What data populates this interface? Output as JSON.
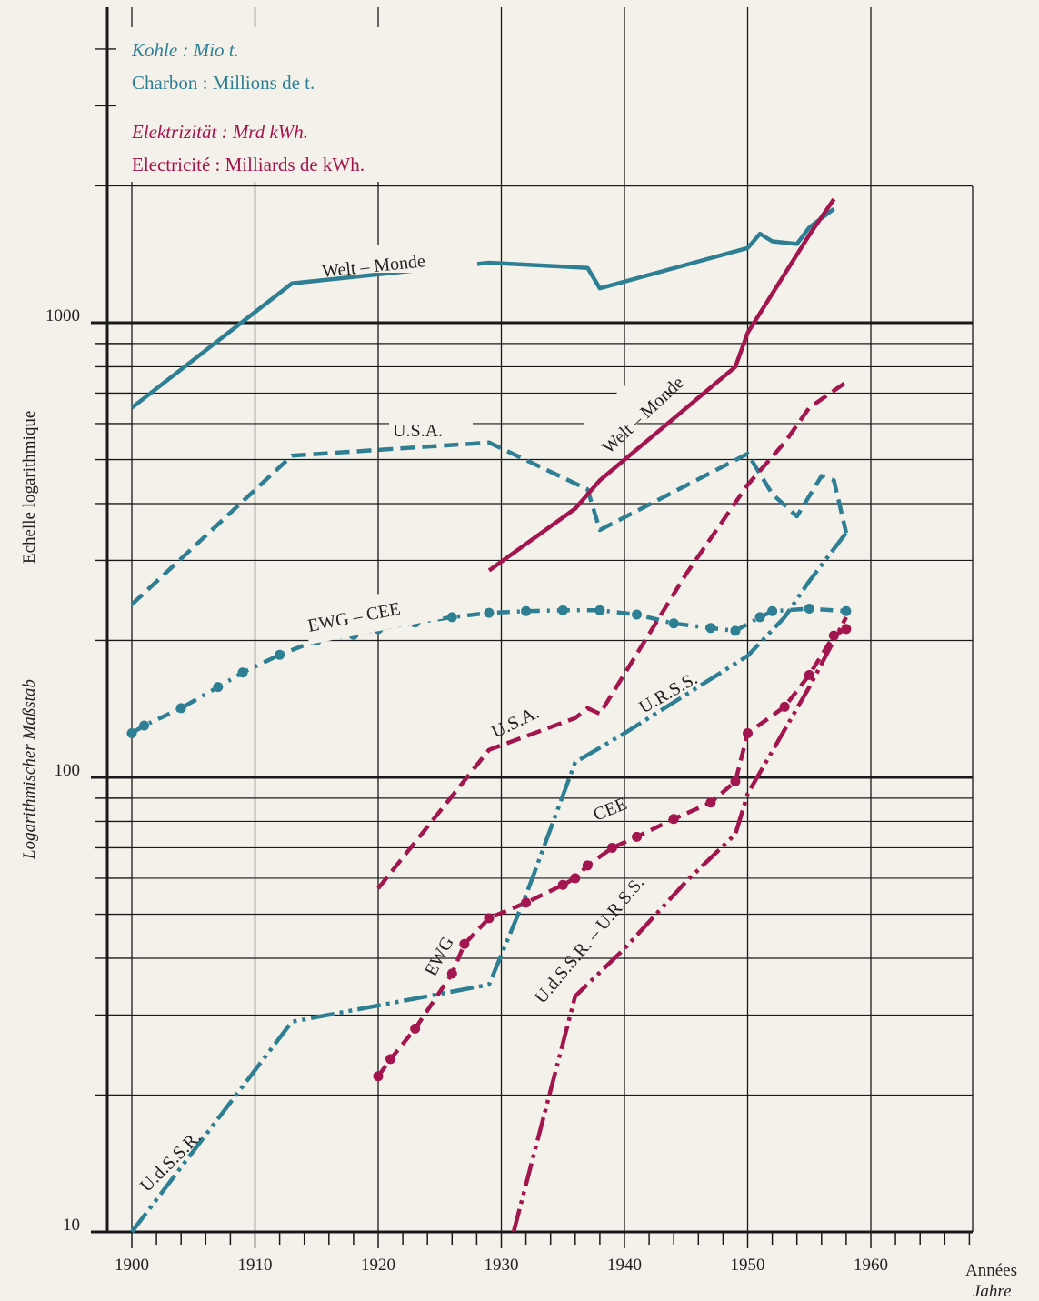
{
  "chart_data": {
    "type": "line",
    "y_scale": "log",
    "ylim": [
      10,
      2000
    ],
    "xlim": [
      1900,
      1968
    ],
    "x_ticks": [
      1900,
      1910,
      1920,
      1930,
      1940,
      1950,
      1960
    ],
    "x_tick_labels": [
      "1900",
      "1910",
      "1920",
      "1930",
      "1940",
      "1950",
      "1960"
    ],
    "y_tick_labels": [
      {
        "value": 1000,
        "label": "1000"
      },
      {
        "value": 100,
        "label": "100"
      },
      {
        "value": 10,
        "label": "10"
      }
    ],
    "xlabel": [
      "Années",
      "Jahre"
    ],
    "ylabel": [
      "Echelle logarithmique",
      "Logarithmischer Maßstab"
    ],
    "grid": true,
    "legend": {
      "position": "top-left",
      "coal_de": "Kohle : Mio t.",
      "coal_fr": "Charbon : Millions de t.",
      "elec_de": "Elektrizität : Mrd kWh.",
      "elec_fr": "Electricité : Milliards de kWh."
    },
    "colors": {
      "coal": "#2f7f94",
      "electricity": "#a3154f"
    },
    "series": [
      {
        "name": "Welt – Monde",
        "group": "coal",
        "style": "solid",
        "points": [
          [
            1900,
            650
          ],
          [
            1913,
            1220
          ],
          [
            1929,
            1355
          ],
          [
            1937,
            1320
          ],
          [
            1938,
            1190
          ],
          [
            1950,
            1460
          ],
          [
            1951,
            1570
          ],
          [
            1952,
            1510
          ],
          [
            1954,
            1490
          ],
          [
            1955,
            1620
          ],
          [
            1957,
            1780
          ]
        ]
      },
      {
        "name": "U.S.A.",
        "group": "coal",
        "style": "dash",
        "points": [
          [
            1900,
            240
          ],
          [
            1913,
            510
          ],
          [
            1929,
            545
          ],
          [
            1937,
            430
          ],
          [
            1938,
            350
          ],
          [
            1950,
            515
          ],
          [
            1952,
            420
          ],
          [
            1954,
            375
          ],
          [
            1956,
            460
          ],
          [
            1957,
            450
          ],
          [
            1958,
            345
          ]
        ]
      },
      {
        "name": "EWG – CEE",
        "group": "coal",
        "style": "dashdot-dots",
        "points": [
          [
            1900,
            125
          ],
          [
            1901,
            130
          ],
          [
            1904,
            142
          ],
          [
            1907,
            158
          ],
          [
            1909,
            170
          ],
          [
            1912,
            186
          ],
          [
            1915,
            200
          ],
          [
            1918,
            206
          ],
          [
            1920,
            212
          ],
          [
            1923,
            219
          ],
          [
            1926,
            225
          ],
          [
            1929,
            230
          ],
          [
            1932,
            232
          ],
          [
            1935,
            233
          ],
          [
            1938,
            233
          ],
          [
            1941,
            228
          ],
          [
            1944,
            218
          ],
          [
            1947,
            213
          ],
          [
            1949,
            210
          ],
          [
            1951,
            225
          ],
          [
            1952,
            232
          ],
          [
            1955,
            235
          ],
          [
            1958,
            232
          ]
        ]
      },
      {
        "name": "U.d.S.S.R.",
        "group": "coal",
        "style": "dashdotdot",
        "points": [
          [
            1900,
            10
          ],
          [
            1913,
            29
          ],
          [
            1929,
            35
          ],
          [
            1932,
            55
          ],
          [
            1936,
            108
          ],
          [
            1940,
            125
          ],
          [
            1950,
            185
          ],
          [
            1953,
            225
          ],
          [
            1955,
            270
          ],
          [
            1958,
            345
          ]
        ]
      },
      {
        "name": "Welt – Monde",
        "group": "electricity",
        "style": "solid",
        "points": [
          [
            1929,
            285
          ],
          [
            1936,
            390
          ],
          [
            1938,
            450
          ],
          [
            1949,
            800
          ],
          [
            1950,
            950
          ],
          [
            1955,
            1560
          ],
          [
            1957,
            1870
          ]
        ]
      },
      {
        "name": "U.S.A.",
        "group": "electricity",
        "style": "dash",
        "points": [
          [
            1920,
            57
          ],
          [
            1929,
            115
          ],
          [
            1936,
            135
          ],
          [
            1937,
            142
          ],
          [
            1938,
            138
          ],
          [
            1945,
            280
          ],
          [
            1950,
            440
          ],
          [
            1953,
            545
          ],
          [
            1955,
            650
          ],
          [
            1958,
            740
          ]
        ]
      },
      {
        "name": "EWG",
        "group": "electricity",
        "style": "dash-dots",
        "points": [
          [
            1920,
            22
          ],
          [
            1921,
            24
          ],
          [
            1923,
            28
          ],
          [
            1926,
            37
          ],
          [
            1927,
            43
          ],
          [
            1929,
            49
          ],
          [
            1932,
            53
          ],
          [
            1935,
            58
          ],
          [
            1936,
            60
          ],
          [
            1937,
            64
          ],
          [
            1939,
            70
          ],
          [
            1941,
            74
          ],
          [
            1944,
            81
          ],
          [
            1947,
            88
          ],
          [
            1949,
            98
          ],
          [
            1950,
            125
          ],
          [
            1953,
            143
          ],
          [
            1955,
            168
          ],
          [
            1957,
            205
          ],
          [
            1958,
            212
          ]
        ]
      },
      {
        "name": "CEE",
        "group": "electricity",
        "style": "label",
        "points": []
      },
      {
        "name": "U.d.S.S.R. – U.R.S.S.",
        "group": "electricity",
        "style": "dashdotdot",
        "points": [
          [
            1931,
            10
          ],
          [
            1936,
            33
          ],
          [
            1940,
            42
          ],
          [
            1945,
            59
          ],
          [
            1949,
            75
          ],
          [
            1950,
            92
          ],
          [
            1955,
            158
          ],
          [
            1958,
            225
          ]
        ]
      },
      {
        "name": "U.R.S.S.",
        "group": "coal",
        "style": "label",
        "points": []
      }
    ]
  },
  "labels": {
    "coal_world": "Welt – Monde",
    "coal_usa": "U.S.A.",
    "coal_ewg": "EWG – CEE",
    "coal_ussr": "U.d.S.S.R.",
    "coal_urss": "U.R.S.S.",
    "elec_world": "Welt – Monde",
    "elec_usa": "U.S.A.",
    "elec_cee": "CEE",
    "elec_ewg": "EWG",
    "elec_ussr": "U.d.S.S.R. – U.R.S.S."
  }
}
